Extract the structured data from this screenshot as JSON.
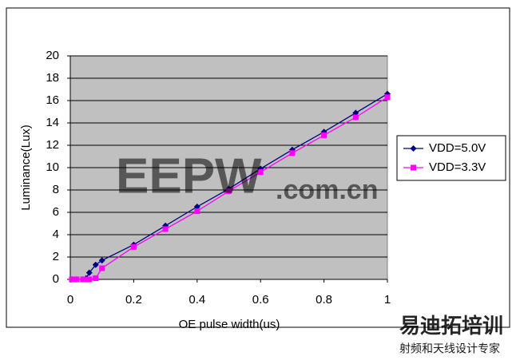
{
  "chart_data": {
    "type": "line",
    "x_label": "OE pulse width(us)",
    "y_label": "Luminance(Lux)",
    "x": [
      0.005,
      0.02,
      0.04,
      0.05,
      0.06,
      0.08,
      0.1,
      0.2,
      0.3,
      0.4,
      0.5,
      0.6,
      0.7,
      0.8,
      0.9,
      1.0
    ],
    "series": [
      {
        "name": "VDD=5.0V",
        "color": "#000080",
        "marker": "diamond",
        "values": [
          0,
          0,
          0,
          0.1,
          0.6,
          1.3,
          1.7,
          3.1,
          4.8,
          6.5,
          8.1,
          9.9,
          11.6,
          13.2,
          14.9,
          16.6
        ]
      },
      {
        "name": "VDD=3.3V",
        "color": "#ff00ff",
        "marker": "square",
        "values": [
          0,
          0,
          0,
          0,
          0,
          0.1,
          1.0,
          2.9,
          4.5,
          6.1,
          7.9,
          9.6,
          11.3,
          12.9,
          14.5,
          16.3
        ]
      }
    ],
    "xlim": [
      0,
      1
    ],
    "xticks": [
      0,
      0.2,
      0.4,
      0.6,
      0.8,
      1
    ],
    "ylim": [
      0,
      20
    ],
    "yticks": [
      0,
      2,
      4,
      6,
      8,
      10,
      12,
      14,
      16,
      18,
      20
    ],
    "grid": true,
    "plot_background": "#c0c0c0",
    "legend": "right",
    "annotations": [
      "EEPW",
      ".com.cn",
      "易迪拓培训",
      "射频和天线设计专家"
    ]
  }
}
